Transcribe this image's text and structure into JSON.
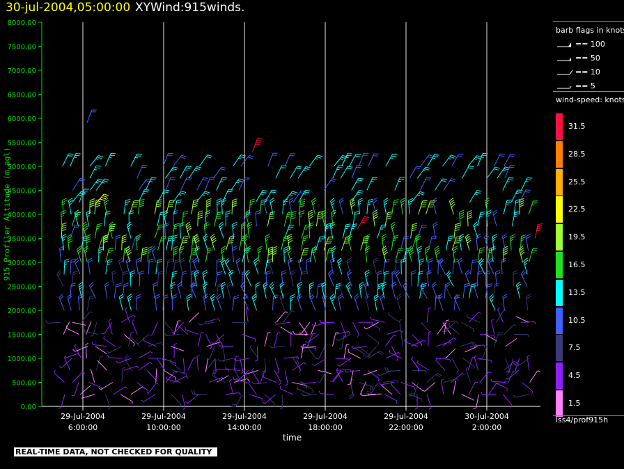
{
  "header": {
    "datetime": "30-jul-2004,05:00:00",
    "subtitle": "XYWind:915winds."
  },
  "legend": {
    "flags_title": "barb flags in knots",
    "flags": [
      {
        "label": "== 100",
        "knots": 100
      },
      {
        "label": "== 50",
        "knots": 50
      },
      {
        "label": "== 10",
        "knots": 10
      },
      {
        "label": "== 5",
        "knots": 5
      }
    ],
    "speed_title": "wind-speed: knots",
    "color_scale": [
      {
        "label": "31.5",
        "color": "#ff1040"
      },
      {
        "label": "28.5",
        "color": "#ff8000"
      },
      {
        "label": "25.5",
        "color": "#ffb000"
      },
      {
        "label": "22.5",
        "color": "#ffff00"
      },
      {
        "label": "19.5",
        "color": "#a0ff30"
      },
      {
        "label": "16.5",
        "color": "#20e020"
      },
      {
        "label": "13.5",
        "color": "#00ffff"
      },
      {
        "label": "10.5",
        "color": "#4060ff"
      },
      {
        "label": "7.5",
        "color": "#3a3a78"
      },
      {
        "label": "4.5",
        "color": "#9020ff"
      },
      {
        "label": "1.5",
        "color": "#ff80ff"
      }
    ],
    "dataset": "iss4/prof915h"
  },
  "footer": {
    "quality_note": "REAL-TIME DATA, NOT CHECKED FOR QUALITY"
  },
  "chart_data": {
    "type": "scatter",
    "title": "XYWind:915winds.",
    "xlabel": "time",
    "ylabel": "915 Profiler Altitude (m agl)",
    "ylim": [
      0,
      8000
    ],
    "yticks": [
      "0.00",
      "500.00",
      "1000.00",
      "1500.00",
      "2000.00",
      "2500.00",
      "3000.00",
      "3500.00",
      "4000.00",
      "4500.00",
      "5000.00",
      "5500.00",
      "6000.00",
      "6500.00",
      "7000.00",
      "7500.00",
      "8000.00"
    ],
    "xticks": [
      {
        "date": "29-Jul-2004",
        "time": "6:00:00"
      },
      {
        "date": "29-Jul-2004",
        "time": "10:00:00"
      },
      {
        "date": "29-Jul-2004",
        "time": "14:00:00"
      },
      {
        "date": "29-Jul-2004",
        "time": "18:00:00"
      },
      {
        "date": "29-Jul-2004",
        "time": "22:00:00"
      },
      {
        "date": "30-Jul-2004",
        "time": "2:00:00"
      }
    ],
    "x_range_hours": [
      "29-Jul-2004 05:00:00",
      "30-Jul-2004 05:00:00"
    ],
    "grid": "vertical at x ticks",
    "speed_bins_knots": [
      1.5,
      4.5,
      7.5,
      10.5,
      13.5,
      16.5,
      19.5,
      22.5,
      25.5,
      28.5,
      31.5
    ],
    "profiles_summary": [
      {
        "height_range_m": [
          200,
          2000
        ],
        "typical_speed_knots": 4.5
      },
      {
        "height_range_m": [
          2000,
          3000
        ],
        "typical_speed_knots": 10.5
      },
      {
        "height_range_m": [
          3000,
          4500
        ],
        "typical_speed_knots": 13.5
      },
      {
        "height_range_m": [
          4000,
          5000
        ],
        "typical_speed_knots": 13.5
      }
    ]
  }
}
